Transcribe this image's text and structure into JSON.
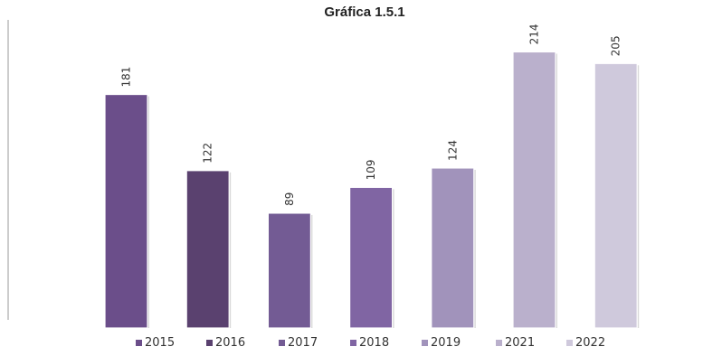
{
  "chart_data": {
    "type": "bar",
    "title": "Gráfica 1.5.1",
    "categories": [
      "2015",
      "2016",
      "2017",
      "2018",
      "2019",
      "2021",
      "2022"
    ],
    "values": [
      181,
      122,
      89,
      109,
      124,
      214,
      205
    ],
    "colors": [
      "#6b4e8a",
      "#5a416f",
      "#735b94",
      "#8065a3",
      "#a193bb",
      "#bab0cc",
      "#cfc9dc"
    ],
    "ylim": [
      0,
      215
    ],
    "grid": false,
    "legend": "bottom",
    "xlabel": "",
    "ylabel": ""
  }
}
